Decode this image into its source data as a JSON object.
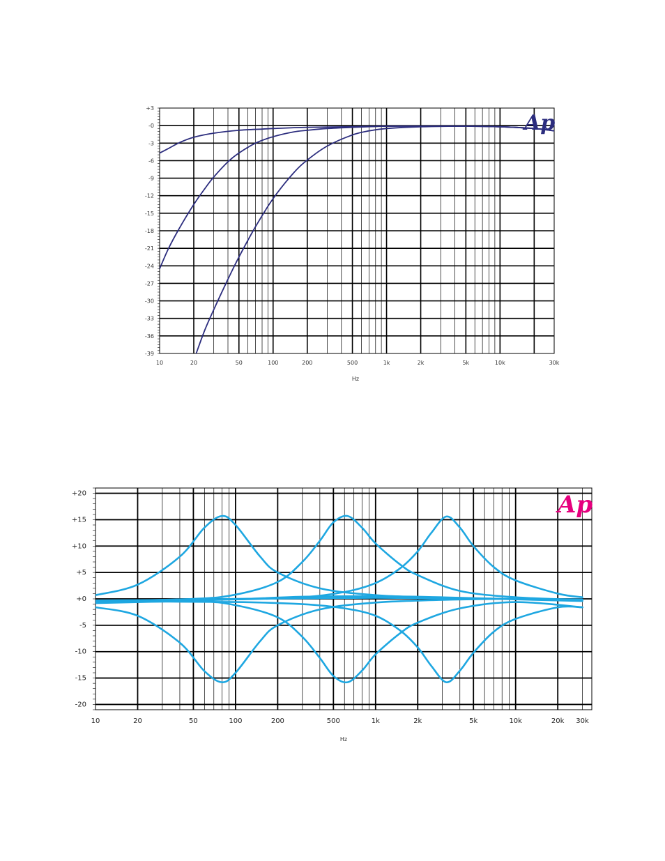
{
  "chart_data": [
    {
      "type": "line",
      "title": "",
      "xlabel": "Hz",
      "ylabel": "",
      "x_scale": "log",
      "xlim": [
        10,
        30000
      ],
      "ylim": [
        -39,
        3
      ],
      "x_ticks": [
        {
          "value": 10,
          "label": "10"
        },
        {
          "value": 20,
          "label": "20"
        },
        {
          "value": 50,
          "label": "50"
        },
        {
          "value": 100,
          "label": "100"
        },
        {
          "value": 200,
          "label": "200"
        },
        {
          "value": 500,
          "label": "500"
        },
        {
          "value": 1000,
          "label": "1k"
        },
        {
          "value": 2000,
          "label": "2k"
        },
        {
          "value": 5000,
          "label": "5k"
        },
        {
          "value": 10000,
          "label": "10k"
        },
        {
          "value": 30000,
          "label": "30k"
        }
      ],
      "y_ticks": [
        {
          "value": 3,
          "label": "+3"
        },
        {
          "value": 0,
          "label": "-0"
        },
        {
          "value": -3,
          "label": "-3"
        },
        {
          "value": -6,
          "label": "-6"
        },
        {
          "value": -9,
          "label": "-9"
        },
        {
          "value": -12,
          "label": "-12"
        },
        {
          "value": -15,
          "label": "-15"
        },
        {
          "value": -18,
          "label": "-18"
        },
        {
          "value": -21,
          "label": "-21"
        },
        {
          "value": -24,
          "label": "-24"
        },
        {
          "value": -27,
          "label": "-27"
        },
        {
          "value": -30,
          "label": "-30"
        },
        {
          "value": -33,
          "label": "-33"
        },
        {
          "value": -36,
          "label": "-36"
        },
        {
          "value": -39,
          "label": "-39"
        }
      ],
      "grid": true,
      "line_color": "#2c2d7e",
      "logo_text": "Ap",
      "logo_color": "#2c2d7e",
      "series": [
        {
          "x": [
            10,
            12,
            15,
            20,
            30,
            50,
            80,
            100,
            200,
            500,
            1000,
            2000,
            5000,
            10000,
            20000,
            30000
          ],
          "y": [
            -4.7,
            -3.9,
            -2.9,
            -2.0,
            -1.3,
            -0.8,
            -0.6,
            -0.5,
            -0.3,
            -0.2,
            -0.1,
            -0.1,
            -0.1,
            -0.2,
            -0.5,
            -0.9
          ]
        },
        {
          "x": [
            10,
            12,
            15,
            20,
            25,
            30,
            40,
            50,
            70,
            100,
            150,
            200,
            300,
            500,
            1000,
            2000,
            5000,
            10000,
            20000,
            30000
          ],
          "y": [
            -24.5,
            -21.0,
            -17.5,
            -13.5,
            -10.8,
            -8.8,
            -6.2,
            -4.7,
            -3.0,
            -1.9,
            -1.1,
            -0.8,
            -0.5,
            -0.3,
            -0.1,
            -0.1,
            -0.1,
            -0.2,
            -0.5,
            -0.9
          ]
        },
        {
          "x": [
            21,
            25,
            30,
            40,
            50,
            70,
            100,
            150,
            200,
            300,
            500,
            700,
            1000,
            2000,
            5000,
            10000,
            20000,
            30000
          ],
          "y": [
            -39.0,
            -35.0,
            -31.5,
            -26.3,
            -22.5,
            -17.3,
            -12.5,
            -8.2,
            -5.9,
            -3.5,
            -1.6,
            -0.9,
            -0.5,
            -0.2,
            -0.1,
            -0.2,
            -0.5,
            -0.9
          ]
        }
      ]
    },
    {
      "type": "line",
      "title": "",
      "xlabel": "Hz",
      "ylabel": "",
      "x_scale": "log",
      "xlim": [
        10,
        35000
      ],
      "ylim": [
        -21,
        21
      ],
      "x_ticks": [
        {
          "value": 10,
          "label": "10"
        },
        {
          "value": 20,
          "label": "20"
        },
        {
          "value": 50,
          "label": "50"
        },
        {
          "value": 100,
          "label": "100"
        },
        {
          "value": 200,
          "label": "200"
        },
        {
          "value": 500,
          "label": "500"
        },
        {
          "value": 1000,
          "label": "1k"
        },
        {
          "value": 2000,
          "label": "2k"
        },
        {
          "value": 5000,
          "label": "5k"
        },
        {
          "value": 10000,
          "label": "10k"
        },
        {
          "value": 20000,
          "label": "20k"
        },
        {
          "value": 30000,
          "label": "30k"
        }
      ],
      "y_ticks": [
        {
          "value": 20,
          "label": "+20"
        },
        {
          "value": 15,
          "label": "+15"
        },
        {
          "value": 10,
          "label": "+10"
        },
        {
          "value": 5,
          "label": "+5"
        },
        {
          "value": 0,
          "label": "+0"
        },
        {
          "value": -5,
          "label": "-5"
        },
        {
          "value": -10,
          "label": "-10"
        },
        {
          "value": -15,
          "label": "-15"
        },
        {
          "value": -20,
          "label": "-20"
        }
      ],
      "grid": true,
      "line_color": "#1ea7e1",
      "logo_text": "Ap",
      "logo_color": "#e6007e",
      "series": [
        {
          "x": [
            10,
            20,
            40,
            60,
            80,
            100,
            150,
            200,
            400,
            1000,
            3000,
            10000,
            30000
          ],
          "y": [
            0.7,
            2.7,
            8.0,
            13.5,
            15.7,
            14.0,
            8.0,
            5.0,
            2.0,
            0.7,
            0.2,
            0.0,
            -0.2
          ]
        },
        {
          "x": [
            10,
            20,
            40,
            60,
            80,
            100,
            150,
            200,
            400,
            1000,
            3000,
            10000,
            30000
          ],
          "y": [
            -1.6,
            -3.2,
            -8.3,
            -13.7,
            -15.8,
            -14.0,
            -8.0,
            -5.0,
            -2.0,
            -0.7,
            -0.2,
            0.0,
            -0.2
          ]
        },
        {
          "x": [
            10,
            50,
            100,
            200,
            300,
            400,
            500,
            630,
            800,
            1000,
            1500,
            2000,
            4000,
            10000,
            30000
          ],
          "y": [
            -0.5,
            0.0,
            0.8,
            3.2,
            7.0,
            11.0,
            14.5,
            15.7,
            13.5,
            10.5,
            6.5,
            4.5,
            1.5,
            0.3,
            -0.2
          ]
        },
        {
          "x": [
            10,
            50,
            100,
            200,
            300,
            400,
            500,
            630,
            800,
            1000,
            1500,
            2000,
            4000,
            10000,
            30000
          ],
          "y": [
            -0.3,
            -0.4,
            -1.2,
            -3.5,
            -7.2,
            -11.2,
            -14.6,
            -15.8,
            -13.6,
            -10.5,
            -6.5,
            -4.5,
            -1.8,
            -0.6,
            -1.6
          ]
        },
        {
          "x": [
            10,
            100,
            300,
            600,
            1000,
            1500,
            2000,
            2500,
            3200,
            4000,
            5000,
            7000,
            10000,
            20000,
            30000
          ],
          "y": [
            -0.3,
            -0.1,
            0.3,
            1.3,
            3.0,
            5.8,
            9.0,
            12.5,
            15.6,
            13.5,
            10.0,
            6.0,
            3.5,
            1.0,
            0.3
          ]
        },
        {
          "x": [
            10,
            100,
            300,
            600,
            1000,
            1500,
            2000,
            2500,
            3200,
            4000,
            5000,
            7000,
            10000,
            20000,
            30000
          ],
          "y": [
            -0.5,
            -0.6,
            -1.0,
            -1.8,
            -3.2,
            -6.0,
            -9.2,
            -12.7,
            -15.8,
            -13.6,
            -10.2,
            -6.2,
            -3.8,
            -1.6,
            -1.6
          ]
        },
        {
          "x": [
            10,
            30,
            100,
            300,
            1000,
            3000,
            10000,
            30000
          ],
          "y": [
            -0.3,
            -0.2,
            0.0,
            0.1,
            0.2,
            0.1,
            0.0,
            -0.1
          ]
        },
        {
          "x": [
            10,
            30,
            100,
            300,
            1000,
            3000,
            10000,
            30000
          ],
          "y": [
            -0.8,
            -0.5,
            -0.1,
            0.4,
            0.5,
            0.3,
            -0.1,
            -0.4
          ]
        }
      ]
    }
  ]
}
